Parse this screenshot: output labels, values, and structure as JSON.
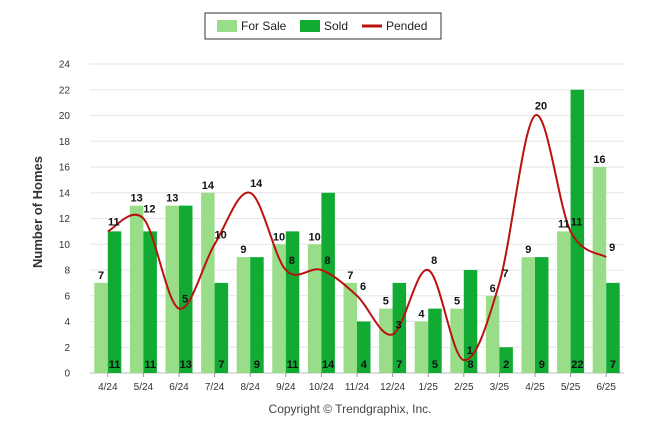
{
  "chart_data": {
    "type": "bar",
    "categories": [
      "4/24",
      "5/24",
      "6/24",
      "7/24",
      "8/24",
      "9/24",
      "10/24",
      "11/24",
      "12/24",
      "1/25",
      "2/25",
      "3/25",
      "4/25",
      "5/25",
      "6/25"
    ],
    "series": [
      {
        "name": "For Sale",
        "type": "bar",
        "color": "#99dd88",
        "values": [
          7,
          13,
          13,
          14,
          9,
          10,
          10,
          7,
          5,
          4,
          5,
          6,
          9,
          11,
          16
        ]
      },
      {
        "name": "Sold",
        "type": "bar",
        "color": "#11aa33",
        "values": [
          11,
          11,
          13,
          7,
          9,
          11,
          14,
          4,
          7,
          5,
          8,
          2,
          9,
          22,
          7
        ]
      },
      {
        "name": "Pended",
        "type": "line",
        "color": "#bb1111",
        "smooth": true,
        "values": [
          11,
          12,
          5,
          10,
          14,
          8,
          8,
          6,
          3,
          8,
          1,
          7,
          20,
          11,
          9
        ]
      }
    ],
    "ylabel": "Number of Homes",
    "ylim": [
      0,
      24
    ],
    "yticks": [
      0,
      2,
      4,
      6,
      8,
      10,
      12,
      14,
      16,
      18,
      20,
      22,
      24
    ],
    "grid": true,
    "legend_position": "top-center",
    "credit": "Copyright © Trendgraphix, Inc."
  }
}
